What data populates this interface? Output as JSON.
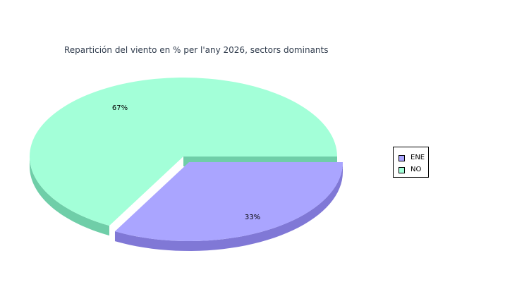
{
  "chart_data": {
    "type": "pie",
    "title": "Repartición del viento en % per l'any 2026, sectors dominants",
    "slices": [
      {
        "name": "ENE",
        "value": 33,
        "label": "33%",
        "color": "#aaa5ff",
        "side_color": "#8078d6"
      },
      {
        "name": "NO",
        "value": 67,
        "label": "67%",
        "color": "#a3ffd8",
        "side_color": "#6fcea8"
      }
    ],
    "legend_position": "right"
  }
}
